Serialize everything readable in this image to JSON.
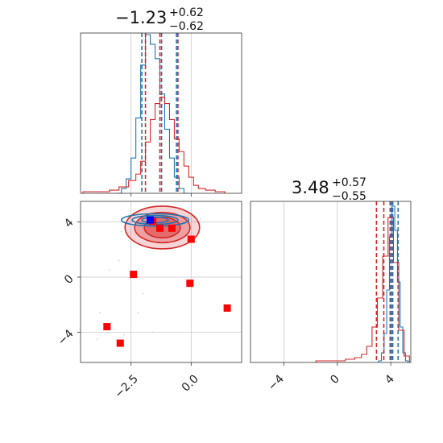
{
  "colors": {
    "blue": "#1f77b4",
    "red": "#d62728",
    "marker_red": "#ff0000",
    "marker_blue": "#0000ff",
    "grid": "#c8c8c8"
  },
  "chart_data": {
    "type": "corner",
    "panels": [
      {
        "id": "hist-param-1",
        "type": "histogram",
        "title": {
          "median": "−1.23",
          "plus": "+0.62",
          "minus": "−0.62"
        },
        "xlim": [
          -4.6,
          2.1
        ],
        "grid_x": [
          -2.5,
          0.0
        ],
        "series": [
          {
            "color": "#1f77b4",
            "quantiles": [
              -2.05,
              -1.23,
              -0.61
            ],
            "bins_center": [
              -3.0,
              -2.8,
              -2.6,
              -2.4,
              -2.2,
              -2.0,
              -1.8,
              -1.6,
              -1.4,
              -1.2,
              -1.0,
              -0.8,
              -0.6,
              -0.4,
              -0.2
            ],
            "counts": [
              0.0,
              0.03,
              0.09,
              0.22,
              0.47,
              0.8,
              0.99,
              0.93,
              0.84,
              0.62,
              0.4,
              0.22,
              0.1,
              0.03,
              0.0
            ]
          },
          {
            "color": "#d62728",
            "quantiles": [
              -1.9,
              -1.3,
              -0.55
            ],
            "bins_center": [
              -4.2,
              -3.6,
              -3.2,
              -2.8,
              -2.4,
              -2.2,
              -2.0,
              -1.8,
              -1.6,
              -1.4,
              -1.2,
              -1.0,
              -0.8,
              -0.6,
              -0.4,
              -0.2,
              0.0,
              0.2,
              0.4,
              0.8,
              1.2
            ],
            "counts": [
              0.01,
              0.01,
              0.02,
              0.04,
              0.08,
              0.12,
              0.2,
              0.32,
              0.46,
              0.56,
              0.6,
              0.56,
              0.46,
              0.34,
              0.26,
              0.17,
              0.1,
              0.05,
              0.03,
              0.02,
              0.01
            ]
          }
        ]
      },
      {
        "id": "hist-param-2",
        "type": "histogram",
        "title": {
          "median": "3.48",
          "plus": "+0.57",
          "minus": "−0.55"
        },
        "xlim": [
          -6.5,
          5.5
        ],
        "grid_x": [
          -4,
          0,
          4
        ],
        "series": [
          {
            "color": "#1f77b4",
            "quantiles": [
              3.95,
              4.15,
              4.55
            ],
            "bins_center": [
              3.2,
              3.4,
              3.6,
              3.8,
              4.0,
              4.2,
              4.4,
              4.6,
              4.8,
              5.0,
              5.2
            ],
            "counts": [
              0.01,
              0.06,
              0.18,
              0.45,
              0.78,
              0.97,
              0.82,
              0.5,
              0.22,
              0.06,
              0.01
            ]
          },
          {
            "color": "#d62728",
            "quantiles": [
              2.93,
              3.48,
              4.05
            ],
            "bins_center": [
              -1.0,
              0.2,
              1.0,
              1.6,
              2.0,
              2.4,
              2.8,
              3.2,
              3.6,
              4.0,
              4.4,
              4.8,
              5.2
            ],
            "counts": [
              0.01,
              0.01,
              0.02,
              0.03,
              0.05,
              0.1,
              0.22,
              0.4,
              0.66,
              0.9,
              0.62,
              0.2,
              0.04
            ]
          }
        ]
      },
      {
        "id": "scatter-2d",
        "type": "scatter",
        "xlim": [
          -4.6,
          2.1
        ],
        "ylim": [
          -6.2,
          5.5
        ],
        "grid_x": [
          -2.5,
          0.0
        ],
        "grid_y": [
          -4,
          0,
          4
        ],
        "red_contours": [
          {
            "cx": -1.2,
            "cy": 3.6,
            "rx": 1.55,
            "ry": 1.55,
            "opacity": 0.35
          },
          {
            "cx": -1.2,
            "cy": 3.6,
            "rx": 1.15,
            "ry": 1.1,
            "opacity": 0.55
          },
          {
            "cx": -1.2,
            "cy": 3.6,
            "rx": 0.75,
            "ry": 0.75,
            "opacity": 0.8
          }
        ],
        "blue_contours": [
          {
            "cx": -1.5,
            "cy": 4.15,
            "rx": 1.4,
            "ry": 0.45
          },
          {
            "cx": -1.5,
            "cy": 4.15,
            "rx": 0.95,
            "ry": 0.32
          },
          {
            "cx": -1.5,
            "cy": 4.15,
            "rx": 0.55,
            "ry": 0.2
          }
        ],
        "red_markers": [
          [
            -1.6,
            4.05
          ],
          [
            -1.3,
            3.55
          ],
          [
            -0.8,
            3.55
          ],
          [
            0.0,
            2.75
          ],
          [
            -2.4,
            0.2
          ],
          [
            -0.05,
            -0.45
          ],
          [
            1.5,
            -2.25
          ],
          [
            -3.5,
            -3.6
          ],
          [
            -2.95,
            -4.8
          ]
        ],
        "blue_markers": [
          [
            -1.7,
            4.15
          ]
        ]
      }
    ],
    "tick_labels": {
      "x": [
        "−2.5",
        "0.0"
      ],
      "y": [
        "4",
        "0",
        "−4"
      ],
      "x2": [
        "−4",
        "0",
        "4"
      ]
    }
  }
}
